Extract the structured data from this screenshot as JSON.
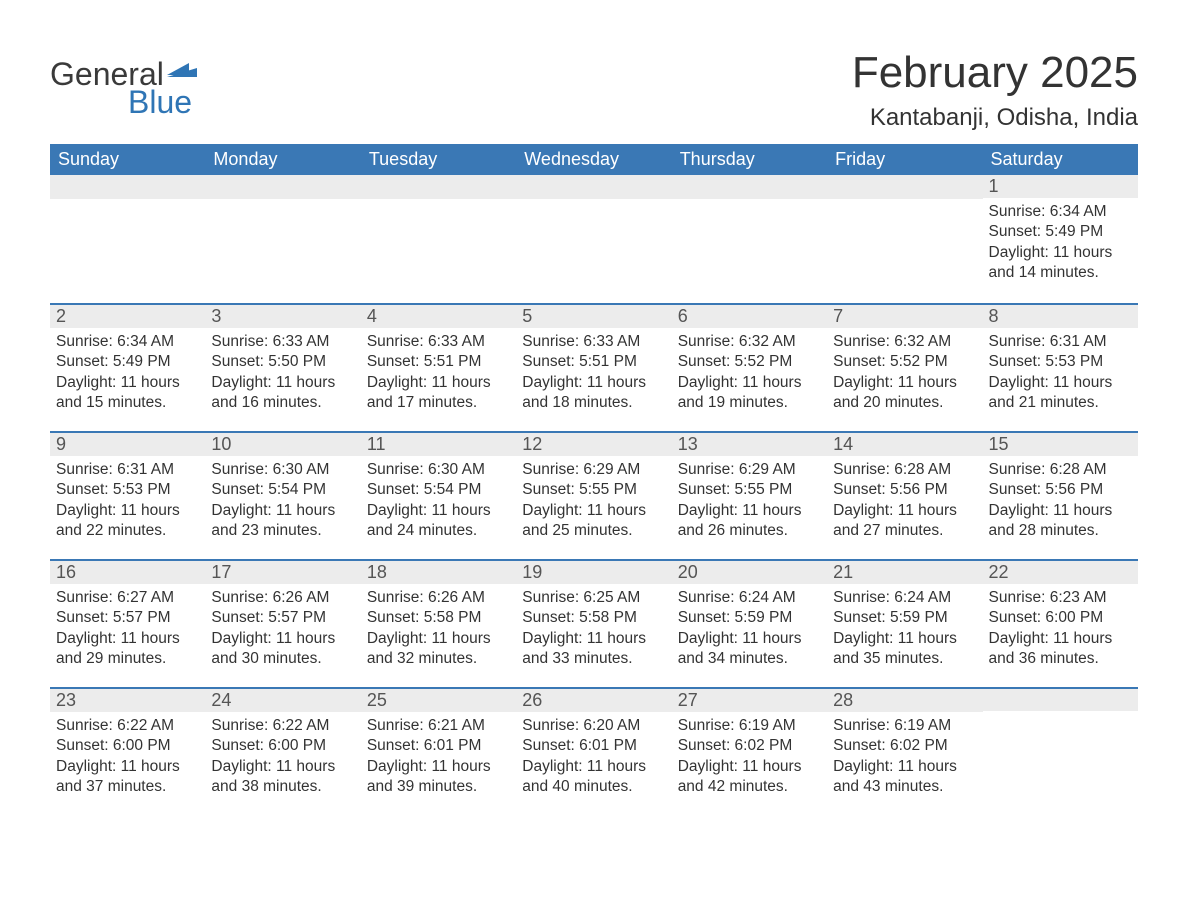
{
  "brand": {
    "word1": "General",
    "word2": "Blue",
    "accent_color": "#2f75b5",
    "text_color": "#3a3a3a"
  },
  "header": {
    "title": "February 2025",
    "location": "Kantabanji, Odisha, India"
  },
  "calendar": {
    "day_labels": [
      "Sunday",
      "Monday",
      "Tuesday",
      "Wednesday",
      "Thursday",
      "Friday",
      "Saturday"
    ],
    "header_bg": "#3a78b5",
    "header_fg": "#ffffff",
    "daynum_bg": "#ececec",
    "row_border_color": "#3a78b5",
    "text_color": "#333333",
    "weeks": [
      [
        null,
        null,
        null,
        null,
        null,
        null,
        {
          "n": "1",
          "sunrise": "Sunrise: 6:34 AM",
          "sunset": "Sunset: 5:49 PM",
          "daylight": "Daylight: 11 hours and 14 minutes."
        }
      ],
      [
        {
          "n": "2",
          "sunrise": "Sunrise: 6:34 AM",
          "sunset": "Sunset: 5:49 PM",
          "daylight": "Daylight: 11 hours and 15 minutes."
        },
        {
          "n": "3",
          "sunrise": "Sunrise: 6:33 AM",
          "sunset": "Sunset: 5:50 PM",
          "daylight": "Daylight: 11 hours and 16 minutes."
        },
        {
          "n": "4",
          "sunrise": "Sunrise: 6:33 AM",
          "sunset": "Sunset: 5:51 PM",
          "daylight": "Daylight: 11 hours and 17 minutes."
        },
        {
          "n": "5",
          "sunrise": "Sunrise: 6:33 AM",
          "sunset": "Sunset: 5:51 PM",
          "daylight": "Daylight: 11 hours and 18 minutes."
        },
        {
          "n": "6",
          "sunrise": "Sunrise: 6:32 AM",
          "sunset": "Sunset: 5:52 PM",
          "daylight": "Daylight: 11 hours and 19 minutes."
        },
        {
          "n": "7",
          "sunrise": "Sunrise: 6:32 AM",
          "sunset": "Sunset: 5:52 PM",
          "daylight": "Daylight: 11 hours and 20 minutes."
        },
        {
          "n": "8",
          "sunrise": "Sunrise: 6:31 AM",
          "sunset": "Sunset: 5:53 PM",
          "daylight": "Daylight: 11 hours and 21 minutes."
        }
      ],
      [
        {
          "n": "9",
          "sunrise": "Sunrise: 6:31 AM",
          "sunset": "Sunset: 5:53 PM",
          "daylight": "Daylight: 11 hours and 22 minutes."
        },
        {
          "n": "10",
          "sunrise": "Sunrise: 6:30 AM",
          "sunset": "Sunset: 5:54 PM",
          "daylight": "Daylight: 11 hours and 23 minutes."
        },
        {
          "n": "11",
          "sunrise": "Sunrise: 6:30 AM",
          "sunset": "Sunset: 5:54 PM",
          "daylight": "Daylight: 11 hours and 24 minutes."
        },
        {
          "n": "12",
          "sunrise": "Sunrise: 6:29 AM",
          "sunset": "Sunset: 5:55 PM",
          "daylight": "Daylight: 11 hours and 25 minutes."
        },
        {
          "n": "13",
          "sunrise": "Sunrise: 6:29 AM",
          "sunset": "Sunset: 5:55 PM",
          "daylight": "Daylight: 11 hours and 26 minutes."
        },
        {
          "n": "14",
          "sunrise": "Sunrise: 6:28 AM",
          "sunset": "Sunset: 5:56 PM",
          "daylight": "Daylight: 11 hours and 27 minutes."
        },
        {
          "n": "15",
          "sunrise": "Sunrise: 6:28 AM",
          "sunset": "Sunset: 5:56 PM",
          "daylight": "Daylight: 11 hours and 28 minutes."
        }
      ],
      [
        {
          "n": "16",
          "sunrise": "Sunrise: 6:27 AM",
          "sunset": "Sunset: 5:57 PM",
          "daylight": "Daylight: 11 hours and 29 minutes."
        },
        {
          "n": "17",
          "sunrise": "Sunrise: 6:26 AM",
          "sunset": "Sunset: 5:57 PM",
          "daylight": "Daylight: 11 hours and 30 minutes."
        },
        {
          "n": "18",
          "sunrise": "Sunrise: 6:26 AM",
          "sunset": "Sunset: 5:58 PM",
          "daylight": "Daylight: 11 hours and 32 minutes."
        },
        {
          "n": "19",
          "sunrise": "Sunrise: 6:25 AM",
          "sunset": "Sunset: 5:58 PM",
          "daylight": "Daylight: 11 hours and 33 minutes."
        },
        {
          "n": "20",
          "sunrise": "Sunrise: 6:24 AM",
          "sunset": "Sunset: 5:59 PM",
          "daylight": "Daylight: 11 hours and 34 minutes."
        },
        {
          "n": "21",
          "sunrise": "Sunrise: 6:24 AM",
          "sunset": "Sunset: 5:59 PM",
          "daylight": "Daylight: 11 hours and 35 minutes."
        },
        {
          "n": "22",
          "sunrise": "Sunrise: 6:23 AM",
          "sunset": "Sunset: 6:00 PM",
          "daylight": "Daylight: 11 hours and 36 minutes."
        }
      ],
      [
        {
          "n": "23",
          "sunrise": "Sunrise: 6:22 AM",
          "sunset": "Sunset: 6:00 PM",
          "daylight": "Daylight: 11 hours and 37 minutes."
        },
        {
          "n": "24",
          "sunrise": "Sunrise: 6:22 AM",
          "sunset": "Sunset: 6:00 PM",
          "daylight": "Daylight: 11 hours and 38 minutes."
        },
        {
          "n": "25",
          "sunrise": "Sunrise: 6:21 AM",
          "sunset": "Sunset: 6:01 PM",
          "daylight": "Daylight: 11 hours and 39 minutes."
        },
        {
          "n": "26",
          "sunrise": "Sunrise: 6:20 AM",
          "sunset": "Sunset: 6:01 PM",
          "daylight": "Daylight: 11 hours and 40 minutes."
        },
        {
          "n": "27",
          "sunrise": "Sunrise: 6:19 AM",
          "sunset": "Sunset: 6:02 PM",
          "daylight": "Daylight: 11 hours and 42 minutes."
        },
        {
          "n": "28",
          "sunrise": "Sunrise: 6:19 AM",
          "sunset": "Sunset: 6:02 PM",
          "daylight": "Daylight: 11 hours and 43 minutes."
        },
        null
      ]
    ]
  }
}
